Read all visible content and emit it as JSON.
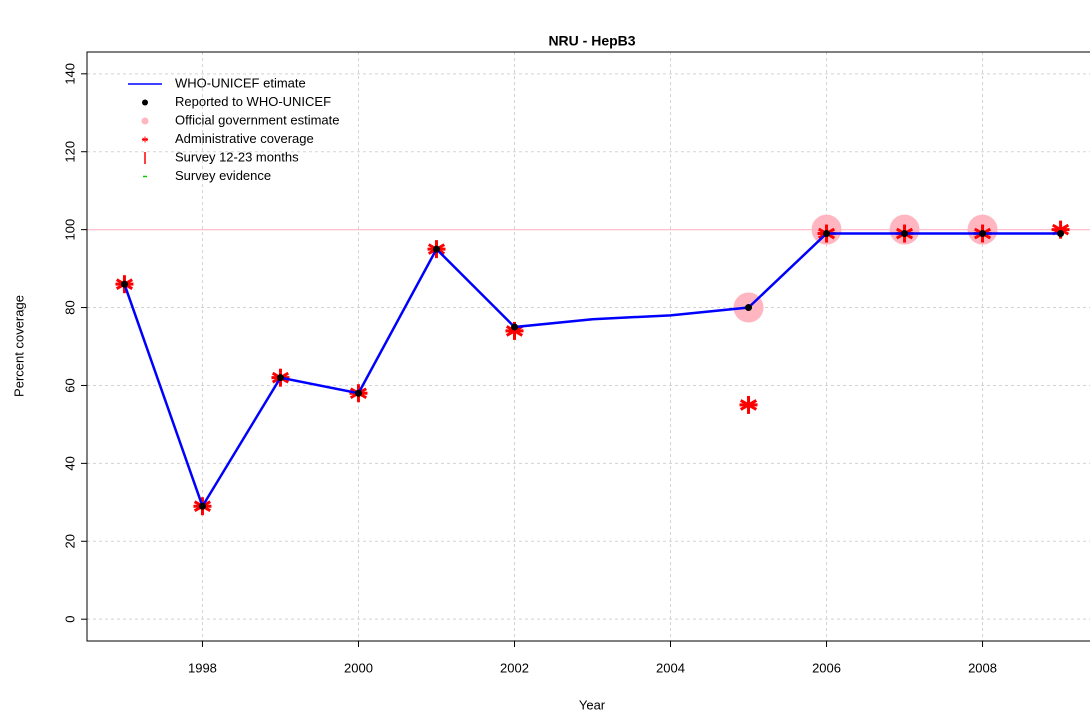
{
  "chart_data": {
    "type": "line",
    "title": "NRU  -  HepB3",
    "xlabel": "Year",
    "ylabel": "Percent coverage",
    "x": [
      1997,
      1998,
      1999,
      2000,
      2001,
      2002,
      2003,
      2004,
      2005,
      2006,
      2007,
      2008,
      2009
    ],
    "series": [
      {
        "name": "WHO-UNICEF etimate",
        "color": "#0000ff",
        "marker": "line",
        "values": [
          86,
          29,
          62,
          58,
          95,
          75,
          77,
          78,
          80,
          99,
          99,
          99,
          99
        ]
      },
      {
        "name": "Reported to WHO-UNICEF",
        "color": "#000000",
        "marker": "dot",
        "values": [
          86,
          29,
          62,
          58,
          95,
          75,
          null,
          null,
          80,
          99,
          99,
          99,
          99
        ]
      },
      {
        "name": "Official government estimate",
        "color": "#ffb6c1",
        "marker": "circle",
        "values": [
          null,
          null,
          null,
          null,
          null,
          null,
          null,
          null,
          80,
          100,
          100,
          100,
          null
        ]
      },
      {
        "name": "Administrative coverage",
        "color": "#ff0000",
        "marker": "asterisk",
        "values": [
          86,
          29,
          62,
          58,
          95,
          74,
          null,
          null,
          55,
          99,
          99,
          99,
          100
        ]
      },
      {
        "name": "Survey 12-23 months",
        "color": "#ff0000",
        "marker": "bar",
        "values": [
          null,
          null,
          null,
          null,
          null,
          null,
          null,
          null,
          null,
          null,
          null,
          null,
          null
        ]
      },
      {
        "name": "Survey evidence",
        "color": "#00cc00",
        "marker": "dash",
        "values": [
          null,
          null,
          null,
          null,
          null,
          null,
          null,
          null,
          null,
          null,
          null,
          null,
          null
        ]
      }
    ],
    "xlim": [
      1996.52,
      2009.48
    ],
    "ylim": [
      -5.6,
      145.6
    ],
    "xticks": [
      1998,
      2000,
      2002,
      2004,
      2006,
      2008
    ],
    "yticks": [
      0,
      20,
      40,
      60,
      80,
      100,
      120,
      140
    ],
    "hline": 100,
    "hline_color": "#ffc0cb",
    "grid": true,
    "legend": "upper left"
  }
}
